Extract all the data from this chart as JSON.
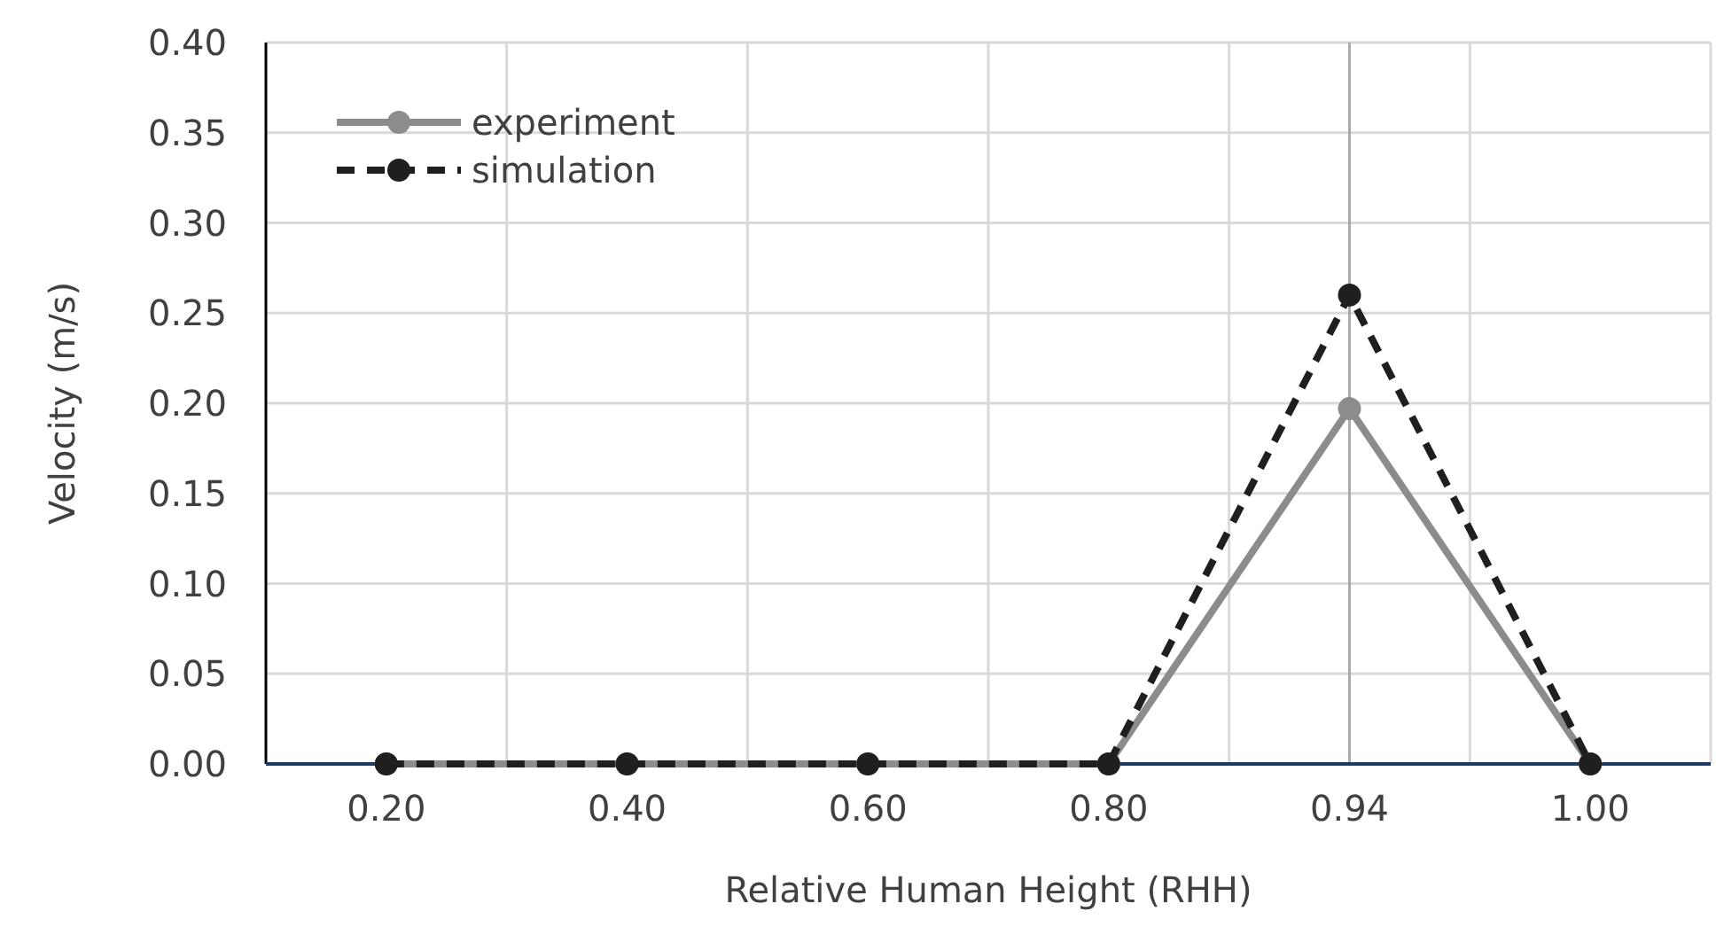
{
  "chart_data": {
    "type": "line",
    "xlabel": "Relative Human Height (RHH)",
    "ylabel": "Velocity (m/s)",
    "categories": [
      "0.20",
      "0.40",
      "0.60",
      "0.80",
      "0.94",
      "1.00"
    ],
    "series": [
      {
        "name": "experiment",
        "color": "#8c8c8c",
        "values": [
          0,
          0,
          0,
          0,
          0.197,
          0
        ],
        "line_style": "solid"
      },
      {
        "name": "simulation",
        "color": "#1f1f1f",
        "values": [
          0,
          0,
          0,
          0,
          0.26,
          0
        ],
        "line_style": "dashed"
      }
    ],
    "ylim": [
      0,
      0.4
    ],
    "yticks": [
      {
        "value": 0,
        "label": "0.00"
      },
      {
        "value": 0.05,
        "label": "0.05"
      },
      {
        "value": 0.1,
        "label": "0.10"
      },
      {
        "value": 0.15,
        "label": "0.15"
      },
      {
        "value": 0.2,
        "label": "0.20"
      },
      {
        "value": 0.25,
        "label": "0.25"
      },
      {
        "value": 0.3,
        "label": "0.30"
      },
      {
        "value": 0.35,
        "label": "0.35"
      },
      {
        "value": 0.4,
        "label": "0.40"
      }
    ],
    "ref_lines": [
      {
        "axis": "x",
        "value": "0.94",
        "color": "#aaaaaa"
      }
    ],
    "grid": true,
    "legend": "top left",
    "marker": "circle"
  }
}
